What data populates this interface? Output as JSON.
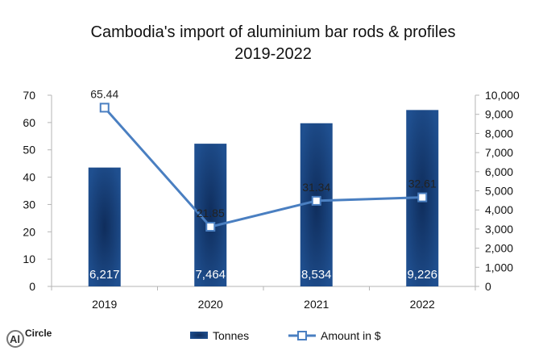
{
  "chart_data": {
    "type": "bar+line",
    "title_line1": "Cambodia's  import of aluminium  bar rods & profiles",
    "title_line2": "2019-2022",
    "categories": [
      "2019",
      "2020",
      "2021",
      "2022"
    ],
    "series": [
      {
        "name": "Tonnes",
        "type": "bar",
        "axis": "right",
        "values": [
          6217,
          7464,
          8534,
          9226
        ],
        "labels": [
          "6,217",
          "7,464",
          "8,534",
          "9,226"
        ]
      },
      {
        "name": "Amount in $",
        "type": "line",
        "axis": "left",
        "values": [
          65.44,
          21.85,
          31.34,
          32.61
        ],
        "labels": [
          "65.44",
          "21.85",
          "31.34",
          "32.61"
        ]
      }
    ],
    "left_axis": {
      "ylim": [
        0,
        70
      ],
      "ticks": [
        "0",
        "10",
        "20",
        "30",
        "40",
        "50",
        "60",
        "70"
      ]
    },
    "right_axis": {
      "ylim": [
        0,
        10000
      ],
      "ticks": [
        "0",
        "1,000",
        "2,000",
        "3,000",
        "4,000",
        "5,000",
        "6,000",
        "7,000",
        "8,000",
        "9,000",
        "10,000"
      ]
    },
    "grid": false,
    "legend_position": "bottom",
    "colors": {
      "bar_dark": "#0f2d5c",
      "bar_light": "#1f4f8f",
      "line": "#4a7fc1",
      "marker_fill": "#ffffff",
      "axis": "#b5b5b5"
    }
  },
  "logo": {
    "text": "Circle",
    "mark": "Al",
    "icon": "alcircle-logo-icon"
  }
}
